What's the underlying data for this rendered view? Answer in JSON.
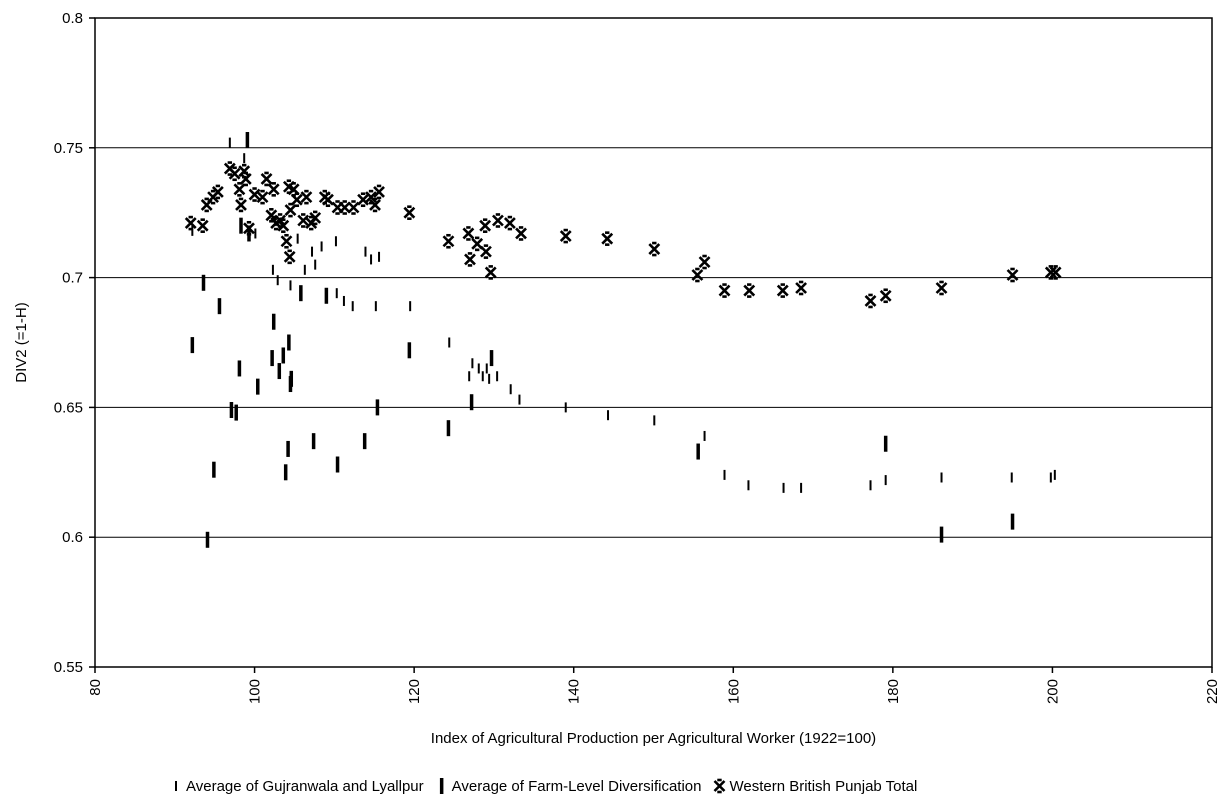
{
  "chart_data": {
    "type": "scatter",
    "title": "",
    "xlabel": "Index of Agricultural Production per Agricultural Worker (1922=100)",
    "ylabel": "DIV2 (=1-H)",
    "xlim": [
      80,
      220
    ],
    "ylim": [
      0.55,
      0.8
    ],
    "xticks": [
      "80",
      "100",
      "120",
      "140",
      "160",
      "180",
      "200",
      "220"
    ],
    "yticks": [
      "0.55",
      "0.6",
      "0.65",
      "0.7",
      "0.75",
      "0.8"
    ],
    "grid": "horizontal",
    "legend_position": "bottom",
    "series": [
      {
        "name": "Average of Gujranwala and Lyallpur",
        "marker": "thin-dash",
        "points": [
          [
            92.2,
            0.718
          ],
          [
            96.9,
            0.752
          ],
          [
            98.7,
            0.746
          ],
          [
            100.1,
            0.717
          ],
          [
            102.3,
            0.703
          ],
          [
            102.9,
            0.699
          ],
          [
            104.5,
            0.697
          ],
          [
            105.4,
            0.715
          ],
          [
            106.3,
            0.703
          ],
          [
            107.2,
            0.71
          ],
          [
            107.6,
            0.705
          ],
          [
            108.4,
            0.712
          ],
          [
            110.2,
            0.714
          ],
          [
            110.3,
            0.694
          ],
          [
            111.2,
            0.691
          ],
          [
            112.3,
            0.689
          ],
          [
            113.9,
            0.71
          ],
          [
            114.6,
            0.707
          ],
          [
            115.6,
            0.708
          ],
          [
            115.2,
            0.689
          ],
          [
            119.5,
            0.689
          ],
          [
            124.4,
            0.675
          ],
          [
            126.9,
            0.662
          ],
          [
            127.3,
            0.667
          ],
          [
            128.1,
            0.665
          ],
          [
            128.6,
            0.662
          ],
          [
            129.1,
            0.665
          ],
          [
            129.4,
            0.661
          ],
          [
            130.4,
            0.662
          ],
          [
            132.1,
            0.657
          ],
          [
            133.2,
            0.653
          ],
          [
            139.0,
            0.65
          ],
          [
            144.3,
            0.647
          ],
          [
            150.1,
            0.645
          ],
          [
            156.4,
            0.639
          ],
          [
            158.9,
            0.624
          ],
          [
            161.9,
            0.62
          ],
          [
            166.3,
            0.619
          ],
          [
            168.5,
            0.619
          ],
          [
            177.2,
            0.62
          ],
          [
            179.1,
            0.622
          ],
          [
            186.1,
            0.623
          ],
          [
            194.9,
            0.623
          ],
          [
            199.8,
            0.623
          ],
          [
            200.3,
            0.624
          ]
        ]
      },
      {
        "name": "Average of Farm-Level Diversification",
        "marker": "thick-dash",
        "points": [
          [
            92.2,
            0.674
          ],
          [
            93.6,
            0.698
          ],
          [
            94.1,
            0.599
          ],
          [
            94.9,
            0.626
          ],
          [
            95.6,
            0.689
          ],
          [
            97.1,
            0.649
          ],
          [
            97.7,
            0.648
          ],
          [
            98.1,
            0.665
          ],
          [
            98.3,
            0.72
          ],
          [
            99.1,
            0.753
          ],
          [
            99.3,
            0.717
          ],
          [
            100.4,
            0.658
          ],
          [
            102.2,
            0.669
          ],
          [
            102.4,
            0.683
          ],
          [
            103.1,
            0.664
          ],
          [
            103.6,
            0.67
          ],
          [
            103.9,
            0.625
          ],
          [
            104.2,
            0.634
          ],
          [
            104.3,
            0.675
          ],
          [
            104.5,
            0.659
          ],
          [
            104.6,
            0.661
          ],
          [
            105.8,
            0.694
          ],
          [
            107.4,
            0.637
          ],
          [
            109.0,
            0.693
          ],
          [
            110.4,
            0.628
          ],
          [
            113.8,
            0.637
          ],
          [
            115.4,
            0.65
          ],
          [
            119.4,
            0.672
          ],
          [
            124.3,
            0.642
          ],
          [
            127.2,
            0.652
          ],
          [
            129.7,
            0.669
          ],
          [
            155.6,
            0.633
          ],
          [
            179.1,
            0.636
          ],
          [
            186.1,
            0.601
          ],
          [
            195.0,
            0.606
          ]
        ]
      },
      {
        "name": "Western British Punjab Total",
        "marker": "asterisk",
        "points": [
          [
            92.0,
            0.721
          ],
          [
            93.5,
            0.72
          ],
          [
            94.0,
            0.728
          ],
          [
            94.8,
            0.731
          ],
          [
            95.4,
            0.733
          ],
          [
            96.9,
            0.742
          ],
          [
            97.5,
            0.74
          ],
          [
            98.1,
            0.734
          ],
          [
            98.3,
            0.728
          ],
          [
            98.7,
            0.741
          ],
          [
            98.9,
            0.738
          ],
          [
            99.3,
            0.719
          ],
          [
            100.0,
            0.732
          ],
          [
            101.0,
            0.731
          ],
          [
            101.5,
            0.738
          ],
          [
            102.1,
            0.724
          ],
          [
            102.4,
            0.734
          ],
          [
            102.7,
            0.721
          ],
          [
            103.2,
            0.722
          ],
          [
            103.6,
            0.72
          ],
          [
            104.0,
            0.714
          ],
          [
            104.3,
            0.735
          ],
          [
            104.4,
            0.708
          ],
          [
            104.5,
            0.726
          ],
          [
            104.9,
            0.734
          ],
          [
            105.3,
            0.73
          ],
          [
            106.1,
            0.722
          ],
          [
            106.5,
            0.731
          ],
          [
            107.1,
            0.721
          ],
          [
            107.6,
            0.723
          ],
          [
            108.8,
            0.731
          ],
          [
            109.2,
            0.73
          ],
          [
            110.4,
            0.727
          ],
          [
            111.3,
            0.727
          ],
          [
            112.4,
            0.727
          ],
          [
            113.6,
            0.73
          ],
          [
            114.6,
            0.731
          ],
          [
            115.1,
            0.728
          ],
          [
            115.6,
            0.733
          ],
          [
            119.4,
            0.725
          ],
          [
            124.3,
            0.714
          ],
          [
            126.8,
            0.717
          ],
          [
            127.0,
            0.707
          ],
          [
            127.9,
            0.713
          ],
          [
            128.9,
            0.72
          ],
          [
            129.0,
            0.71
          ],
          [
            129.6,
            0.702
          ],
          [
            130.5,
            0.722
          ],
          [
            132.0,
            0.721
          ],
          [
            133.4,
            0.717
          ],
          [
            139.0,
            0.716
          ],
          [
            144.2,
            0.715
          ],
          [
            150.1,
            0.711
          ],
          [
            155.5,
            0.701
          ],
          [
            156.4,
            0.706
          ],
          [
            158.9,
            0.695
          ],
          [
            162.0,
            0.695
          ],
          [
            166.2,
            0.695
          ],
          [
            168.5,
            0.696
          ],
          [
            177.2,
            0.691
          ],
          [
            179.1,
            0.693
          ],
          [
            186.1,
            0.696
          ],
          [
            195.0,
            0.701
          ],
          [
            199.8,
            0.702
          ],
          [
            200.4,
            0.702
          ]
        ]
      }
    ]
  }
}
